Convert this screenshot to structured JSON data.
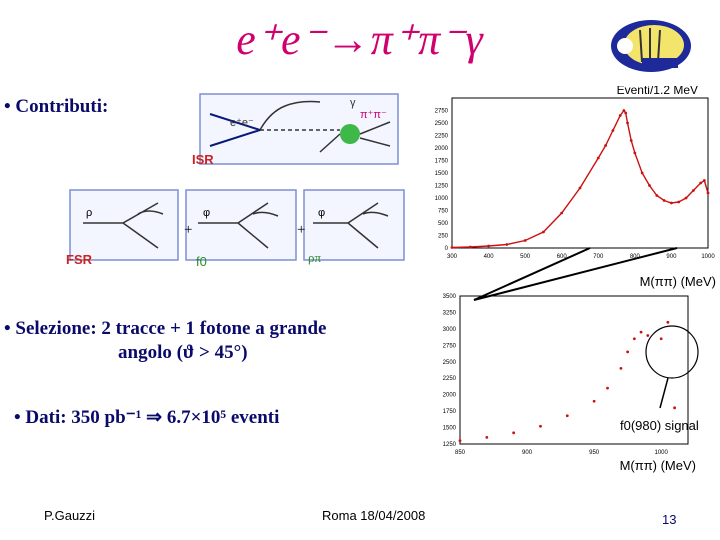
{
  "slide": {
    "title": "e⁺e⁻→π⁺π⁻γ",
    "bullets": {
      "contributi": "• Contributi:",
      "selezione_line1": "• Selezione: 2 tracce + 1 fotone a grande",
      "selezione_line2": "angolo (ϑ > 45°)",
      "dati": "• Dati: 350 pb⁻¹ ⇒ 6.7×10⁵ eventi"
    },
    "diagrams": {
      "isr_label": "ISR",
      "fsr_label": "FSR",
      "f0_label": "f0",
      "rhopi_label": "ρπ",
      "plus": "+"
    },
    "footer": {
      "author": "P.Gauzzi",
      "date": "Roma 18/04/2008",
      "page": "13"
    }
  },
  "chart_data": [
    {
      "type": "line",
      "title": "Eventi/1.2 MeV",
      "xlabel": "M(ππ) (MeV)",
      "ylabel": "",
      "xlim": [
        300,
        1000
      ],
      "ylim": [
        0,
        3000
      ],
      "xticks": [
        "300",
        "400",
        "500",
        "600",
        "700",
        "800",
        "900",
        "1000"
      ],
      "yticks": [
        "0",
        "250",
        "500",
        "750",
        "1000",
        "1250",
        "1500",
        "1750",
        "2000",
        "2250",
        "2500",
        "2750"
      ],
      "series": [
        {
          "values_x": [
            300,
            350,
            400,
            450,
            500,
            550,
            600,
            650,
            700,
            720,
            740,
            760,
            770,
            775,
            780,
            790,
            800,
            820,
            840,
            860,
            880,
            900,
            920,
            940,
            960,
            980,
            990,
            1000
          ],
          "values_y": [
            10,
            20,
            40,
            70,
            150,
            320,
            700,
            1200,
            1800,
            2050,
            2350,
            2650,
            2750,
            2700,
            2500,
            2150,
            1900,
            1500,
            1250,
            1050,
            950,
            900,
            920,
            1000,
            1150,
            1300,
            1350,
            1100
          ]
        }
      ]
    },
    {
      "type": "scatter",
      "title": "",
      "xlabel": "M(ππ) (MeV)",
      "xlim": [
        850,
        1020
      ],
      "ylim": [
        1250,
        3500
      ],
      "xticks": [
        "850",
        "900",
        "950",
        "1000"
      ],
      "yticks": [
        "1250",
        "1500",
        "1750",
        "2000",
        "2250",
        "2500",
        "2750",
        "3000",
        "3250",
        "3500"
      ],
      "series": [
        {
          "values_x": [
            850,
            870,
            890,
            910,
            930,
            950,
            960,
            970,
            975,
            980,
            985,
            990,
            1000,
            1005,
            1010
          ],
          "values_y": [
            1300,
            1350,
            1420,
            1520,
            1680,
            1900,
            2100,
            2400,
            2650,
            2850,
            2950,
            2900,
            2850,
            3100,
            1800
          ]
        }
      ],
      "annotation": "f0(980) signal"
    }
  ]
}
